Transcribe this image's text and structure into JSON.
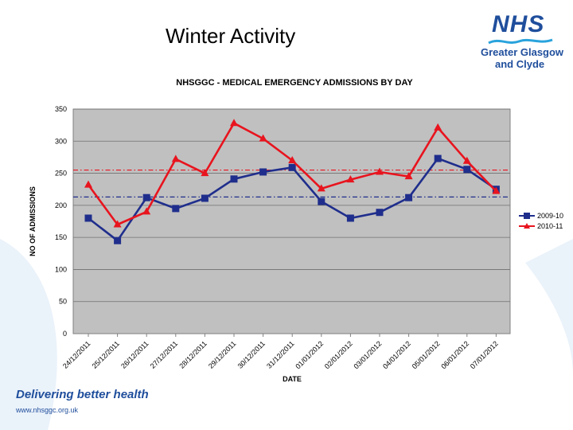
{
  "page": {
    "title": "Winter Activity"
  },
  "logo": {
    "brand": "NHS",
    "line1": "Greater Glasgow",
    "line2": "and Clyde"
  },
  "footer": {
    "tagline": "Delivering better health",
    "url": "www.nhsggc.org.uk"
  },
  "colors": {
    "series_2009": "#1f2e8c",
    "series_2010": "#e8141e",
    "plot_bg": "#c0c0c0",
    "brand": "#1f4e9c"
  },
  "chart_data": {
    "type": "line",
    "title": "NHSGGC - MEDICAL EMERGENCY ADMISSIONS BY DAY",
    "xlabel": "DATE",
    "ylabel": "NO OF ADMISSIONS",
    "ylim": [
      0,
      350
    ],
    "yticks": [
      "0",
      "50",
      "100",
      "150",
      "200",
      "250",
      "300",
      "350"
    ],
    "categories": [
      "24/12/2011",
      "25/12/2011",
      "26/12/2011",
      "27/12/2011",
      "28/12/2011",
      "29/12/2011",
      "30/12/2011",
      "31/12/2011",
      "01/01/2012",
      "02/01/2012",
      "03/01/2012",
      "04/01/2012",
      "05/01/2012",
      "06/01/2012",
      "07/01/2012"
    ],
    "series": [
      {
        "name": "2009-10",
        "values": [
          180,
          145,
          212,
          195,
          211,
          241,
          252,
          259,
          206,
          180,
          189,
          212,
          273,
          256,
          225
        ],
        "average": 213
      },
      {
        "name": "2010-11",
        "values": [
          232,
          170,
          190,
          272,
          250,
          328,
          304,
          270,
          226,
          240,
          252,
          245,
          321,
          269,
          222
        ],
        "average": 255
      }
    ],
    "legend_position": "right",
    "grid": true
  }
}
